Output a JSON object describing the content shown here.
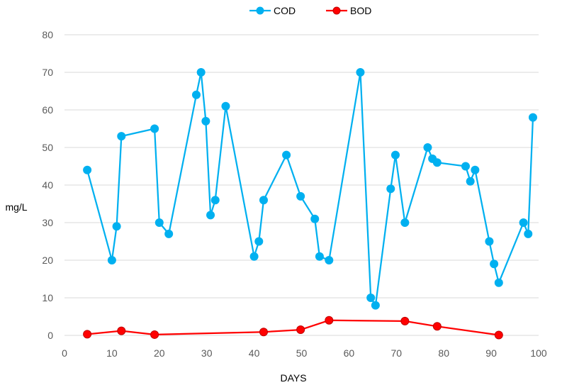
{
  "chart_data": {
    "type": "scatter",
    "xlabel": "DAYS",
    "ylabel": "mg/L",
    "xlim": [
      0,
      100
    ],
    "ylim": [
      0,
      80
    ],
    "x_ticks": [
      "0",
      "10",
      "20",
      "30",
      "40",
      "50",
      "60",
      "70",
      "80",
      "90",
      "100"
    ],
    "y_ticks": [
      "0",
      "10",
      "20",
      "30",
      "40",
      "50",
      "60",
      "70",
      "80"
    ],
    "grid": "horizontal",
    "legend_position": "top",
    "series": [
      {
        "name": "COD",
        "color": "#00B0F0",
        "marker": "circle",
        "points": [
          [
            4.8,
            44
          ],
          [
            10.0,
            20
          ],
          [
            11.0,
            29
          ],
          [
            12.0,
            53
          ],
          [
            19.0,
            55
          ],
          [
            20.0,
            30
          ],
          [
            22.0,
            27
          ],
          [
            27.8,
            64
          ],
          [
            28.8,
            70
          ],
          [
            29.8,
            57
          ],
          [
            30.8,
            32
          ],
          [
            31.8,
            36
          ],
          [
            34.0,
            61
          ],
          [
            40.0,
            21
          ],
          [
            41.0,
            25
          ],
          [
            42.0,
            36
          ],
          [
            46.8,
            48
          ],
          [
            49.8,
            37
          ],
          [
            52.8,
            31
          ],
          [
            53.8,
            21
          ],
          [
            55.8,
            20
          ],
          [
            62.4,
            70
          ],
          [
            64.6,
            10
          ],
          [
            65.6,
            8
          ],
          [
            68.8,
            39
          ],
          [
            69.8,
            48
          ],
          [
            71.8,
            30
          ],
          [
            76.6,
            50
          ],
          [
            77.6,
            47
          ],
          [
            78.6,
            46
          ],
          [
            84.6,
            45
          ],
          [
            85.6,
            41
          ],
          [
            86.6,
            44
          ],
          [
            89.6,
            25
          ],
          [
            90.6,
            19
          ],
          [
            91.6,
            14
          ],
          [
            96.8,
            30
          ],
          [
            97.8,
            27
          ],
          [
            98.8,
            58
          ]
        ]
      },
      {
        "name": "BOD",
        "color": "#FF0000",
        "marker_fill": "#FF0000",
        "marker_edge": "#C00000",
        "marker": "circle",
        "points": [
          [
            4.8,
            0.3
          ],
          [
            12.0,
            1.2
          ],
          [
            19.0,
            0.2
          ],
          [
            42.0,
            0.9
          ],
          [
            49.8,
            1.5
          ],
          [
            55.8,
            4.0
          ],
          [
            71.8,
            3.8
          ],
          [
            78.6,
            2.4
          ],
          [
            91.6,
            0.1
          ]
        ]
      }
    ]
  }
}
